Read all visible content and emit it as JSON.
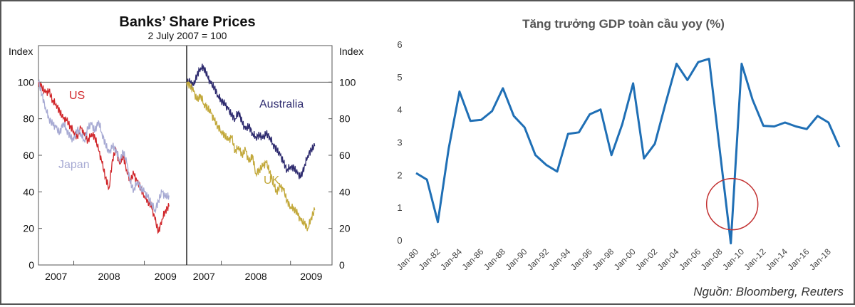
{
  "chart_data": [
    {
      "type": "line",
      "title": "Banks’ Share Prices",
      "subtitle": "2 July 2007 = 100",
      "ylabel_left": "Index",
      "ylabel_right": "Index",
      "ylim": [
        0,
        120
      ],
      "yticks": [
        0,
        20,
        40,
        60,
        80,
        100
      ],
      "xlim": [
        2007.5,
        2009.6
      ],
      "xticks": [
        "2007",
        "2008",
        "2009"
      ],
      "reference_line": 100,
      "colors": {
        "US": "#d0262a",
        "Japan": "#a7aad3",
        "Australia": "#2d2a6e",
        "UK": "#c2a83a"
      },
      "panels": [
        {
          "series": [
            {
              "name": "US",
              "label": "US",
              "x": [
                2007.5,
                2007.55,
                2007.6,
                2007.65,
                2007.7,
                2007.75,
                2007.8,
                2007.85,
                2007.9,
                2007.95,
                2008.0,
                2008.05,
                2008.1,
                2008.15,
                2008.2,
                2008.25,
                2008.3,
                2008.35,
                2008.4,
                2008.45,
                2008.5,
                2008.55,
                2008.6,
                2008.65,
                2008.7,
                2008.75,
                2008.8,
                2008.85,
                2008.9,
                2008.95,
                2009.0,
                2009.05,
                2009.1,
                2009.15,
                2009.2,
                2009.25,
                2009.3,
                2009.35
              ],
              "values": [
                100,
                97,
                94,
                95,
                90,
                88,
                84,
                80,
                79,
                76,
                73,
                70,
                75,
                71,
                68,
                72,
                70,
                63,
                56,
                48,
                42,
                58,
                63,
                55,
                60,
                52,
                46,
                50,
                45,
                42,
                38,
                35,
                32,
                25,
                18,
                25,
                30,
                32
              ]
            },
            {
              "name": "Japan",
              "label": "Japan",
              "x": [
                2007.5,
                2007.55,
                2007.6,
                2007.65,
                2007.7,
                2007.75,
                2007.8,
                2007.85,
                2007.9,
                2007.95,
                2008.0,
                2008.05,
                2008.1,
                2008.15,
                2008.2,
                2008.25,
                2008.3,
                2008.35,
                2008.4,
                2008.45,
                2008.5,
                2008.55,
                2008.6,
                2008.65,
                2008.7,
                2008.75,
                2008.8,
                2008.85,
                2008.9,
                2008.95,
                2009.0,
                2009.05,
                2009.1,
                2009.15,
                2009.2,
                2009.25,
                2009.3,
                2009.35
              ],
              "values": [
                100,
                93,
                86,
                80,
                77,
                75,
                72,
                78,
                74,
                70,
                68,
                74,
                72,
                68,
                75,
                77,
                73,
                79,
                72,
                66,
                61,
                65,
                63,
                57,
                62,
                56,
                45,
                41,
                46,
                42,
                40,
                37,
                34,
                30,
                35,
                40,
                37,
                38
              ]
            }
          ]
        },
        {
          "series": [
            {
              "name": "Australia",
              "label": "Australia",
              "x": [
                2007.5,
                2007.55,
                2007.6,
                2007.65,
                2007.7,
                2007.75,
                2007.8,
                2007.85,
                2007.9,
                2007.95,
                2008.0,
                2008.05,
                2008.1,
                2008.15,
                2008.2,
                2008.25,
                2008.3,
                2008.35,
                2008.4,
                2008.45,
                2008.5,
                2008.55,
                2008.6,
                2008.65,
                2008.7,
                2008.75,
                2008.8,
                2008.85,
                2008.9,
                2008.95,
                2009.0,
                2009.05,
                2009.1,
                2009.15,
                2009.2,
                2009.25,
                2009.3,
                2009.35
              ],
              "values": [
                100,
                100,
                98,
                104,
                108,
                108,
                103,
                99,
                97,
                93,
                90,
                88,
                85,
                82,
                80,
                84,
                78,
                74,
                76,
                72,
                70,
                71,
                69,
                72,
                70,
                66,
                63,
                60,
                56,
                52,
                54,
                53,
                50,
                48,
                54,
                60,
                63,
                65
              ]
            },
            {
              "name": "UK",
              "label": "UK",
              "x": [
                2007.5,
                2007.55,
                2007.6,
                2007.65,
                2007.7,
                2007.75,
                2007.8,
                2007.85,
                2007.9,
                2007.95,
                2008.0,
                2008.05,
                2008.1,
                2008.15,
                2008.2,
                2008.25,
                2008.3,
                2008.35,
                2008.4,
                2008.45,
                2008.5,
                2008.55,
                2008.6,
                2008.65,
                2008.7,
                2008.75,
                2008.8,
                2008.85,
                2008.9,
                2008.95,
                2009.0,
                2009.05,
                2009.1,
                2009.15,
                2009.2,
                2009.25,
                2009.3,
                2009.35
              ],
              "values": [
                100,
                98,
                95,
                90,
                93,
                88,
                86,
                83,
                79,
                76,
                73,
                71,
                68,
                70,
                62,
                65,
                60,
                63,
                56,
                60,
                50,
                52,
                54,
                56,
                51,
                45,
                40,
                43,
                41,
                35,
                32,
                31,
                28,
                24,
                23,
                20,
                26,
                30
              ]
            }
          ]
        }
      ]
    },
    {
      "type": "line",
      "title": "Tăng trưởng GDP toàn cầu yoy (%)",
      "ylim": [
        0,
        6
      ],
      "yticks": [
        0,
        1,
        2,
        3,
        4,
        5,
        6
      ],
      "xticks": [
        "Jan-80",
        "Jan-82",
        "Jan-84",
        "Jan-86",
        "Jan-88",
        "Jan-90",
        "Jan-92",
        "Jan-94",
        "Jan-96",
        "Jan-98",
        "Jan-00",
        "Jan-02",
        "Jan-04",
        "Jan-06",
        "Jan-08",
        "Jan-10",
        "Jan-12",
        "Jan-14",
        "Jan-16",
        "Jan-18"
      ],
      "x": [
        1980,
        1981,
        1982,
        1983,
        1984,
        1985,
        1986,
        1987,
        1988,
        1989,
        1990,
        1991,
        1992,
        1993,
        1994,
        1995,
        1996,
        1997,
        1998,
        1999,
        2000,
        2001,
        2002,
        2003,
        2004,
        2005,
        2006,
        2007,
        2008,
        2009,
        2010,
        2011,
        2012,
        2013,
        2014,
        2015,
        2016,
        2017,
        2018,
        2019
      ],
      "series": [
        {
          "name": "GDP growth",
          "color": "#1f6fb5",
          "values": [
            2.05,
            1.85,
            0.55,
            2.8,
            4.55,
            3.65,
            3.68,
            3.95,
            4.65,
            3.8,
            3.45,
            2.6,
            2.3,
            2.1,
            3.25,
            3.3,
            3.85,
            4.0,
            2.6,
            3.55,
            4.8,
            2.5,
            2.95,
            4.2,
            5.4,
            4.9,
            5.45,
            5.55,
            2.7,
            -0.1,
            5.4,
            4.3,
            3.5,
            3.48,
            3.6,
            3.48,
            3.4,
            3.8,
            3.6,
            2.85
          ]
        }
      ],
      "annotation": {
        "type": "circle",
        "x": 2009,
        "y": 1.1,
        "color": "#c23030"
      },
      "source_note": "Nguồn: Bloomberg, Reuters"
    }
  ]
}
